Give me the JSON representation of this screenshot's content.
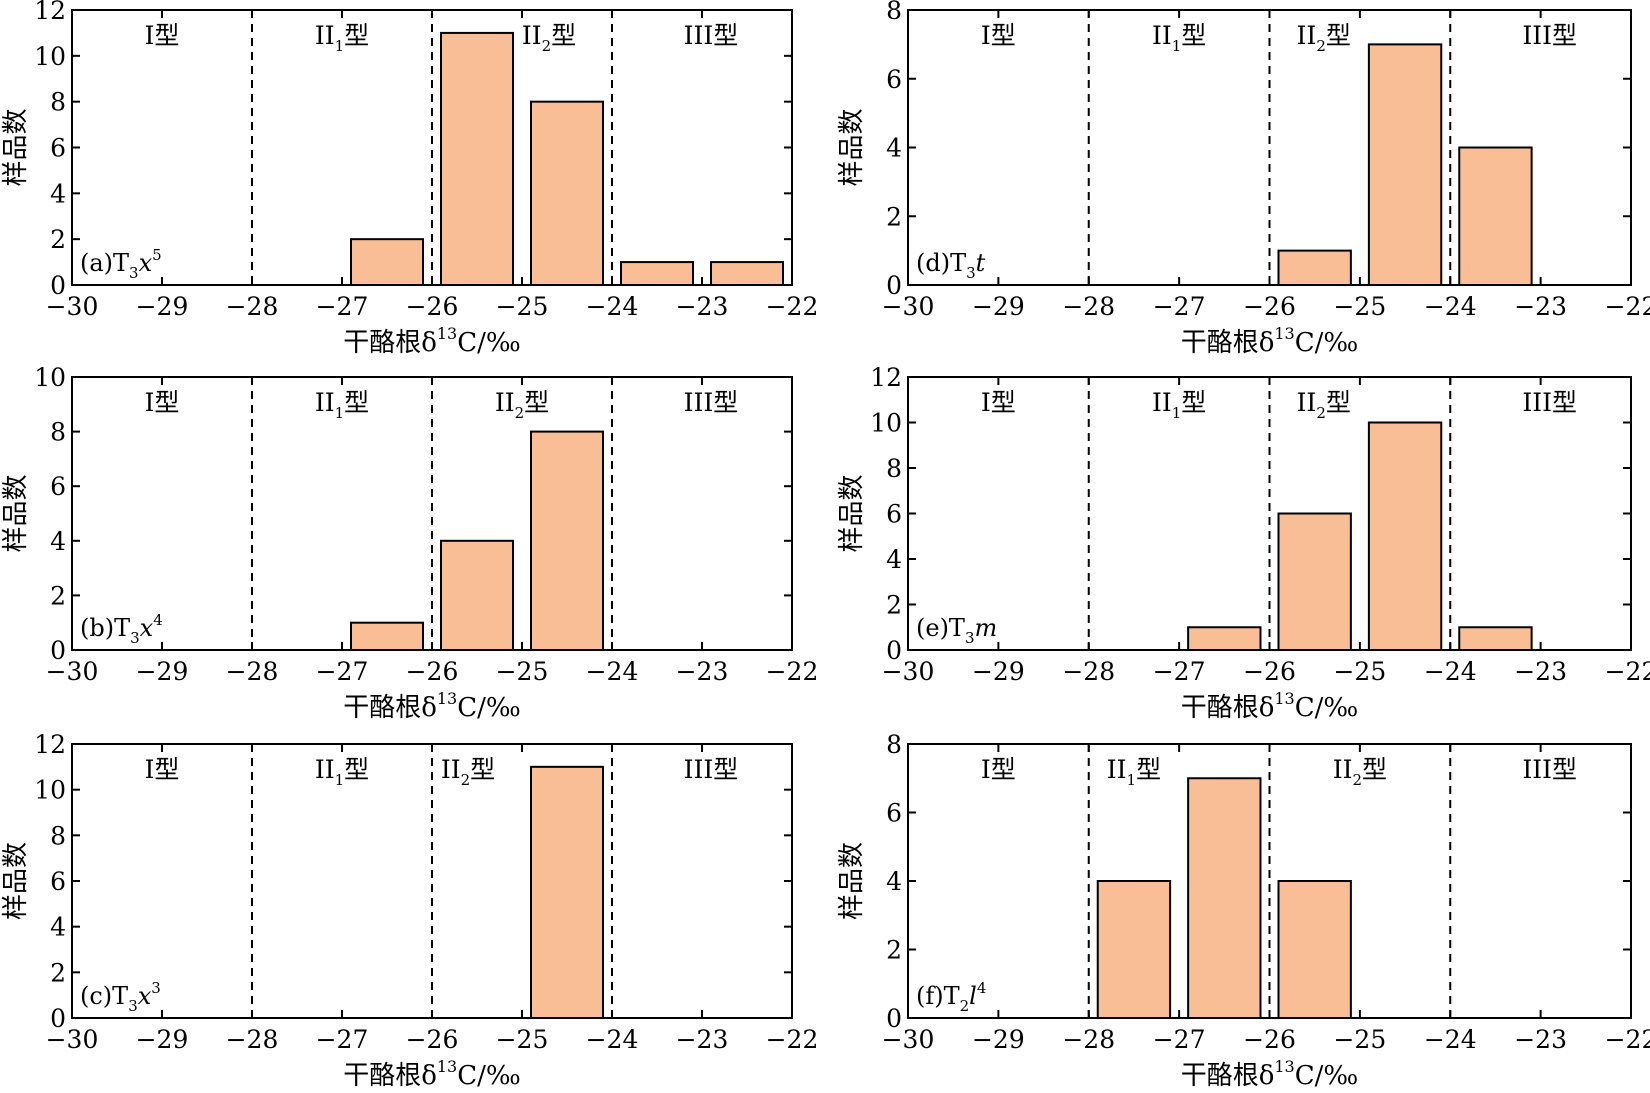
{
  "chart_data": [
    {
      "id": "a",
      "type": "bar",
      "panel_label": {
        "prefix": "(a)T",
        "sub": "3",
        "main": "x",
        "main_italic": true,
        "sup": "5"
      },
      "xlabel": "干酪根δ",
      "xlabel_sup": "13",
      "xlabel_suffix": "C/‰",
      "ylabel": "样品数",
      "xlim": [
        -30,
        -22
      ],
      "ylim": [
        0,
        12
      ],
      "x_ticks": [
        -30,
        -29,
        -28,
        -27,
        -26,
        -25,
        -24,
        -23,
        -22
      ],
      "x_tick_labels": [
        "−30",
        "−29",
        "−28",
        "−27",
        "−26",
        "−25",
        "−24",
        "−23",
        "−22"
      ],
      "y_ticks": [
        0,
        2,
        4,
        6,
        8,
        10,
        12
      ],
      "y_tick_labels": [
        "0",
        "2",
        "4",
        "6",
        "8",
        "10",
        "12"
      ],
      "dividers": [
        -28,
        -26,
        -24
      ],
      "type_labels": [
        {
          "base": "I型",
          "sub": "",
          "x": -29
        },
        {
          "base": "II",
          "sub": "1",
          "tail": "型",
          "x": -27
        },
        {
          "base": "II",
          "sub": "2",
          "tail": "型",
          "x": -24.7
        },
        {
          "base": "III型",
          "sub": "",
          "x": -22.9
        }
      ],
      "bars": [
        {
          "x0": -27,
          "x1": -26,
          "value": 2
        },
        {
          "x0": -26,
          "x1": -25,
          "value": 11
        },
        {
          "x0": -25,
          "x1": -24,
          "value": 8
        },
        {
          "x0": -24,
          "x1": -23,
          "value": 1
        },
        {
          "x0": -23,
          "x1": -22,
          "value": 1
        }
      ],
      "bar_color": "#f9be95"
    },
    {
      "id": "b",
      "type": "bar",
      "panel_label": {
        "prefix": "(b)T",
        "sub": "3",
        "main": "x",
        "main_italic": true,
        "sup": "4"
      },
      "xlabel": "干酪根δ",
      "xlabel_sup": "13",
      "xlabel_suffix": "C/‰",
      "ylabel": "样品数",
      "xlim": [
        -30,
        -22
      ],
      "ylim": [
        0,
        10
      ],
      "x_ticks": [
        -30,
        -29,
        -28,
        -27,
        -26,
        -25,
        -24,
        -23,
        -22
      ],
      "x_tick_labels": [
        "−30",
        "−29",
        "−28",
        "−27",
        "−26",
        "−25",
        "−24",
        "−23",
        "−22"
      ],
      "y_ticks": [
        0,
        2,
        4,
        6,
        8,
        10
      ],
      "y_tick_labels": [
        "0",
        "2",
        "4",
        "6",
        "8",
        "10"
      ],
      "dividers": [
        -28,
        -26,
        -24
      ],
      "type_labels": [
        {
          "base": "I型",
          "sub": "",
          "x": -29
        },
        {
          "base": "II",
          "sub": "1",
          "tail": "型",
          "x": -27
        },
        {
          "base": "II",
          "sub": "2",
          "tail": "型",
          "x": -25
        },
        {
          "base": "III型",
          "sub": "",
          "x": -22.9
        }
      ],
      "bars": [
        {
          "x0": -27,
          "x1": -26,
          "value": 1
        },
        {
          "x0": -26,
          "x1": -25,
          "value": 4
        },
        {
          "x0": -25,
          "x1": -24,
          "value": 8
        }
      ],
      "bar_color": "#f9be95"
    },
    {
      "id": "c",
      "type": "bar",
      "panel_label": {
        "prefix": "(c)T",
        "sub": "3",
        "main": "x",
        "main_italic": true,
        "sup": "3"
      },
      "xlabel": "干酪根δ",
      "xlabel_sup": "13",
      "xlabel_suffix": "C/‰",
      "ylabel": "样品数",
      "xlim": [
        -30,
        -22
      ],
      "ylim": [
        0,
        12
      ],
      "x_ticks": [
        -30,
        -29,
        -28,
        -27,
        -26,
        -25,
        -24,
        -23,
        -22
      ],
      "x_tick_labels": [
        "−30",
        "−29",
        "−28",
        "−27",
        "−26",
        "−25",
        "−24",
        "−23",
        "−22"
      ],
      "y_ticks": [
        0,
        2,
        4,
        6,
        8,
        10,
        12
      ],
      "y_tick_labels": [
        "0",
        "2",
        "4",
        "6",
        "8",
        "10",
        "12"
      ],
      "dividers": [
        -28,
        -26,
        -24
      ],
      "type_labels": [
        {
          "base": "I型",
          "sub": "",
          "x": -29
        },
        {
          "base": "II",
          "sub": "1",
          "tail": "型",
          "x": -27
        },
        {
          "base": "II",
          "sub": "2",
          "tail": "型",
          "x": -25.6
        },
        {
          "base": "III型",
          "sub": "",
          "x": -22.9
        }
      ],
      "bars": [
        {
          "x0": -25,
          "x1": -24,
          "value": 11
        }
      ],
      "bar_color": "#f9be95"
    },
    {
      "id": "d",
      "type": "bar",
      "panel_label": {
        "prefix": "(d)T",
        "sub": "3",
        "main": "t",
        "main_italic": true,
        "sup": ""
      },
      "xlabel": "干酪根δ",
      "xlabel_sup": "13",
      "xlabel_suffix": "C/‰",
      "ylabel": "样品数",
      "xlim": [
        -30,
        -22
      ],
      "ylim": [
        0,
        8
      ],
      "x_ticks": [
        -30,
        -29,
        -28,
        -27,
        -26,
        -25,
        -24,
        -23,
        -22
      ],
      "x_tick_labels": [
        "−30",
        "−29",
        "−28",
        "−27",
        "−26",
        "−25",
        "−24",
        "−23",
        "−22"
      ],
      "y_ticks": [
        0,
        2,
        4,
        6,
        8
      ],
      "y_tick_labels": [
        "0",
        "2",
        "4",
        "6",
        "8"
      ],
      "dividers": [
        -28,
        -26,
        -24
      ],
      "type_labels": [
        {
          "base": "I型",
          "sub": "",
          "x": -29
        },
        {
          "base": "II",
          "sub": "1",
          "tail": "型",
          "x": -27
        },
        {
          "base": "II",
          "sub": "2",
          "tail": "型",
          "x": -25.4
        },
        {
          "base": "III型",
          "sub": "",
          "x": -22.9
        }
      ],
      "bars": [
        {
          "x0": -26,
          "x1": -25,
          "value": 1
        },
        {
          "x0": -25,
          "x1": -24,
          "value": 7
        },
        {
          "x0": -24,
          "x1": -23,
          "value": 4
        }
      ],
      "bar_color": "#f9be95"
    },
    {
      "id": "e",
      "type": "bar",
      "panel_label": {
        "prefix": "(e)T",
        "sub": "3",
        "main": "m",
        "main_italic": true,
        "sup": ""
      },
      "xlabel": "干酪根δ",
      "xlabel_sup": "13",
      "xlabel_suffix": "C/‰",
      "ylabel": "样品数",
      "xlim": [
        -30,
        -22
      ],
      "ylim": [
        0,
        12
      ],
      "x_ticks": [
        -30,
        -29,
        -28,
        -27,
        -26,
        -25,
        -24,
        -23,
        -22
      ],
      "x_tick_labels": [
        "−30",
        "−29",
        "−28",
        "−27",
        "−26",
        "−25",
        "−24",
        "−23",
        "−22"
      ],
      "y_ticks": [
        0,
        2,
        4,
        6,
        8,
        10,
        12
      ],
      "y_tick_labels": [
        "0",
        "2",
        "4",
        "6",
        "8",
        "10",
        "12"
      ],
      "dividers": [
        -28,
        -26,
        -24
      ],
      "type_labels": [
        {
          "base": "I型",
          "sub": "",
          "x": -29
        },
        {
          "base": "II",
          "sub": "1",
          "tail": "型",
          "x": -27
        },
        {
          "base": "II",
          "sub": "2",
          "tail": "型",
          "x": -25.4
        },
        {
          "base": "III型",
          "sub": "",
          "x": -22.9
        }
      ],
      "bars": [
        {
          "x0": -27,
          "x1": -26,
          "value": 1
        },
        {
          "x0": -26,
          "x1": -25,
          "value": 6
        },
        {
          "x0": -25,
          "x1": -24,
          "value": 10
        },
        {
          "x0": -24,
          "x1": -23,
          "value": 1
        }
      ],
      "bar_color": "#f9be95"
    },
    {
      "id": "f",
      "type": "bar",
      "panel_label": {
        "prefix": "(f)T",
        "sub": "2",
        "main": "l",
        "main_italic": true,
        "sup": "4"
      },
      "xlabel": "干酪根δ",
      "xlabel_sup": "13",
      "xlabel_suffix": "C/‰",
      "ylabel": "样品数",
      "xlim": [
        -30,
        -22
      ],
      "ylim": [
        0,
        8
      ],
      "x_ticks": [
        -30,
        -29,
        -28,
        -27,
        -26,
        -25,
        -24,
        -23,
        -22
      ],
      "x_tick_labels": [
        "−30",
        "−29",
        "−28",
        "−27",
        "−26",
        "−25",
        "−24",
        "−23",
        "−22"
      ],
      "y_ticks": [
        0,
        2,
        4,
        6,
        8
      ],
      "y_tick_labels": [
        "0",
        "2",
        "4",
        "6",
        "8"
      ],
      "dividers": [
        -28,
        -26,
        -24
      ],
      "type_labels": [
        {
          "base": "I型",
          "sub": "",
          "x": -29
        },
        {
          "base": "II",
          "sub": "1",
          "tail": "型",
          "x": -27.5
        },
        {
          "base": "II",
          "sub": "2",
          "tail": "型",
          "x": -25
        },
        {
          "base": "III型",
          "sub": "",
          "x": -22.9
        }
      ],
      "bars": [
        {
          "x0": -28,
          "x1": -27,
          "value": 4
        },
        {
          "x0": -27,
          "x1": -26,
          "value": 7
        },
        {
          "x0": -26,
          "x1": -25,
          "value": 4
        }
      ],
      "bar_color": "#f9be95"
    }
  ]
}
